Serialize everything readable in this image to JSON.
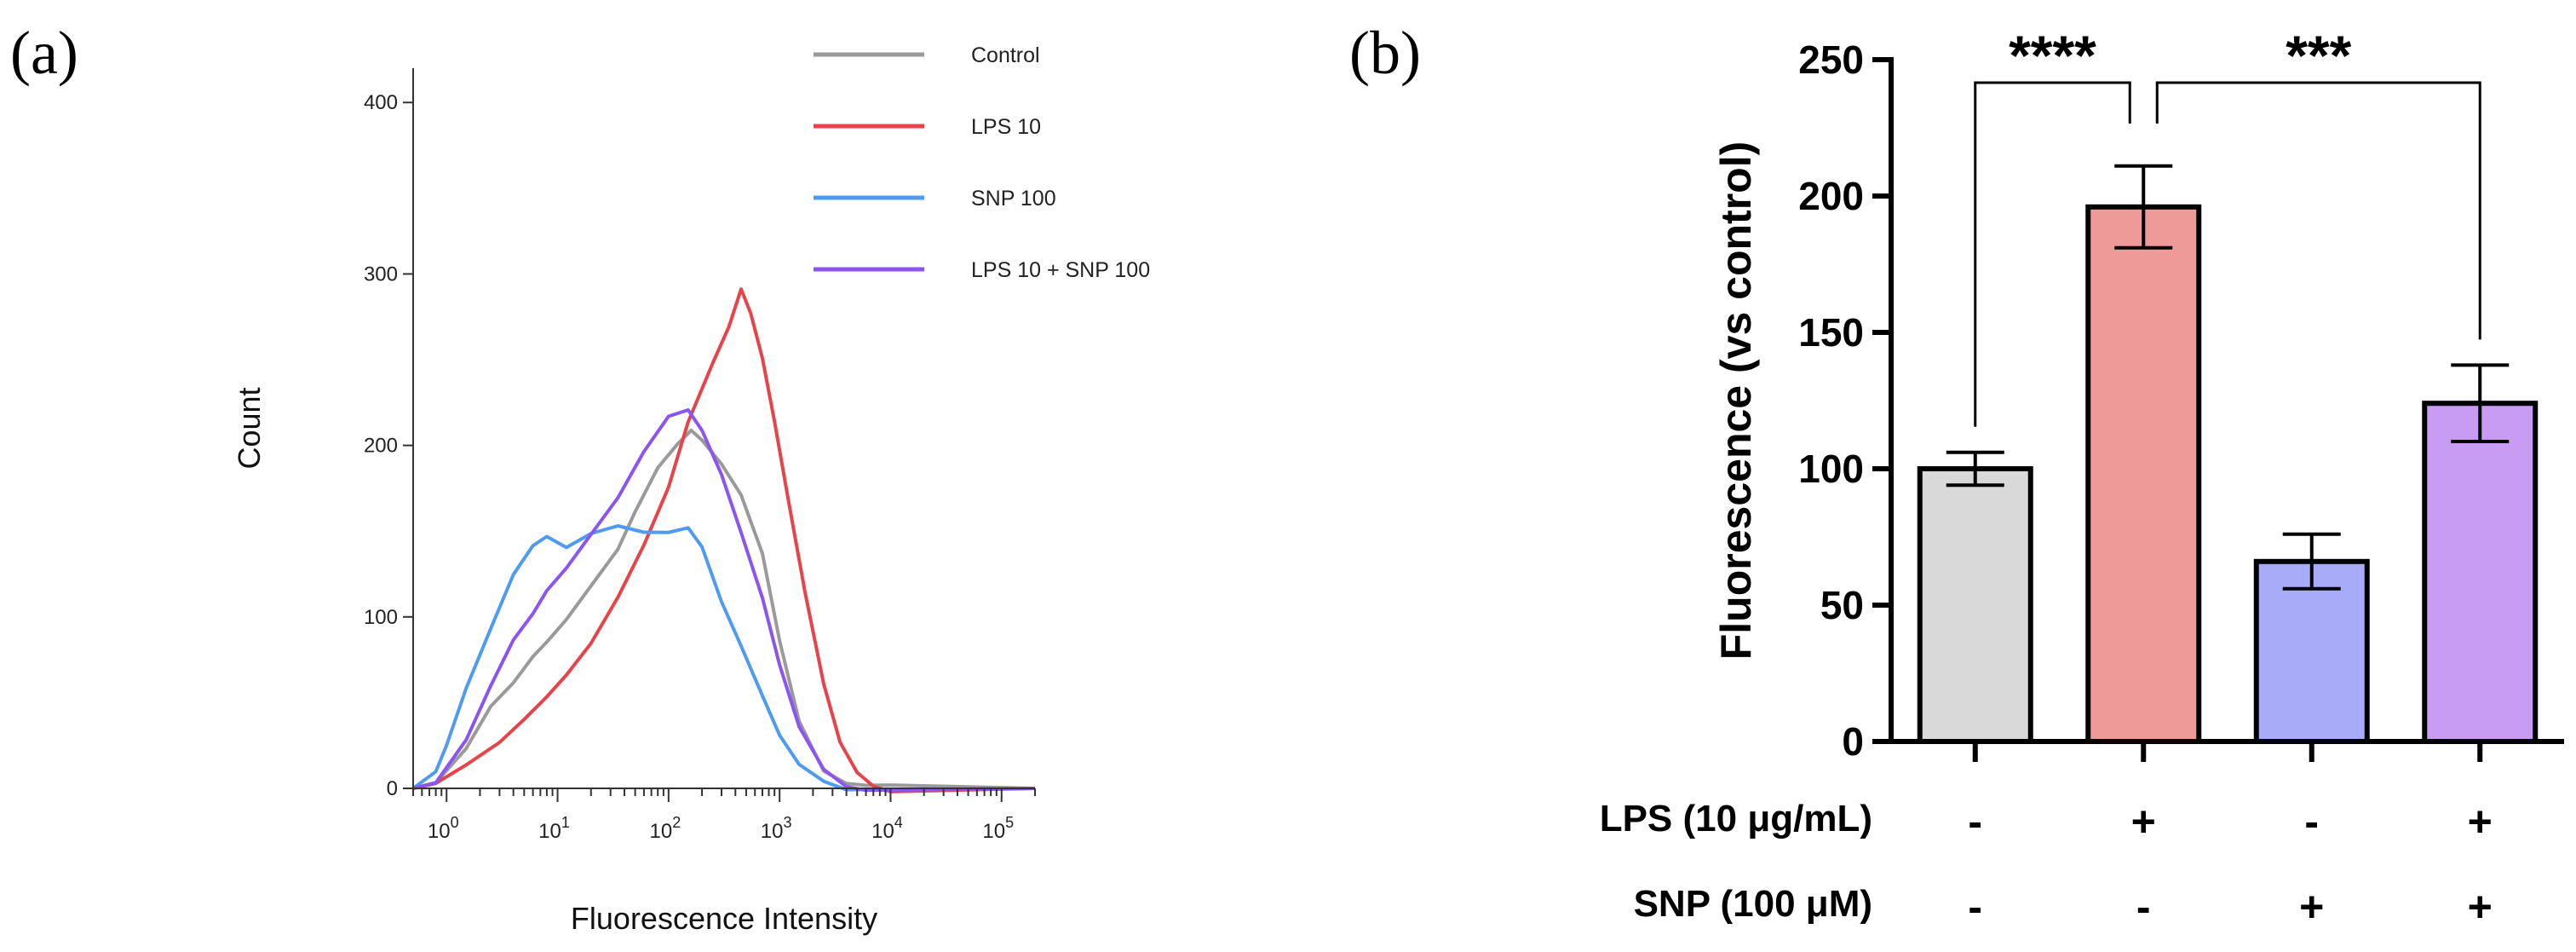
{
  "panel_a_label": "(a)",
  "panel_b_label": "(b)",
  "chart_data": [
    {
      "type": "line",
      "panel": "a",
      "xlabel": "Fluorescence Intensity",
      "ylabel": "Count",
      "x_scale": "log",
      "xlim": [
        0.5,
        200000
      ],
      "ylim": [
        0,
        420
      ],
      "y_ticks": [
        0,
        100,
        200,
        300,
        400
      ],
      "x_tick_labels": [
        {
          "base": "10",
          "exp": "0",
          "value": 1
        },
        {
          "base": "10",
          "exp": "1",
          "value": 10
        },
        {
          "base": "10",
          "exp": "2",
          "value": 100
        },
        {
          "base": "10",
          "exp": "3",
          "value": 1000
        },
        {
          "base": "10",
          "exp": "4",
          "value": 10000
        },
        {
          "base": "10",
          "exp": "5",
          "value": 100000
        }
      ],
      "series": [
        {
          "name": "Control",
          "color": "#9a9a9a",
          "x": [
            0.5,
            0.8,
            1.5,
            2.5,
            4,
            6,
            8,
            12,
            20,
            35,
            50,
            80,
            120,
            160,
            200,
            300,
            450,
            700,
            1000,
            1500,
            2500,
            4000,
            6000,
            10000,
            200000
          ],
          "y": [
            0,
            5,
            25,
            48,
            60,
            75,
            85,
            100,
            120,
            140,
            160,
            185,
            200,
            210,
            205,
            190,
            170,
            135,
            85,
            40,
            12,
            4,
            1,
            0,
            0
          ]
        },
        {
          "name": "LPS 10",
          "color": "#e8434b",
          "x": [
            0.5,
            0.8,
            1.5,
            3,
            5,
            8,
            12,
            20,
            35,
            60,
            100,
            150,
            250,
            350,
            450,
            550,
            700,
            900,
            1200,
            1700,
            2500,
            3500,
            5000,
            7000,
            10000,
            200000
          ],
          "y": [
            0,
            3,
            12,
            25,
            40,
            55,
            68,
            85,
            110,
            140,
            175,
            215,
            250,
            270,
            290,
            275,
            250,
            215,
            170,
            115,
            60,
            25,
            8,
            2,
            0,
            0
          ]
        },
        {
          "name": "SNP 100",
          "color": "#4f9bf2",
          "x": [
            0.5,
            0.8,
            1,
            1.5,
            2.5,
            4,
            6,
            8,
            12,
            20,
            35,
            60,
            100,
            150,
            200,
            300,
            450,
            700,
            1000,
            1500,
            2500,
            4000,
            200000
          ],
          "y": [
            0,
            8,
            25,
            60,
            95,
            125,
            140,
            145,
            140,
            150,
            155,
            150,
            148,
            150,
            140,
            110,
            85,
            55,
            30,
            12,
            3,
            0,
            0
          ]
        },
        {
          "name": "LPS 10 + SNP 100",
          "color": "#8a55f0",
          "x": [
            0.5,
            0.8,
            1.5,
            2.5,
            4,
            6,
            8,
            12,
            20,
            35,
            60,
            100,
            150,
            200,
            300,
            450,
            700,
            1000,
            1500,
            2500,
            4000,
            6000,
            200000
          ],
          "y": [
            0,
            5,
            30,
            60,
            85,
            100,
            115,
            130,
            150,
            170,
            195,
            215,
            220,
            210,
            185,
            150,
            110,
            70,
            35,
            12,
            3,
            0,
            0
          ]
        }
      ]
    },
    {
      "type": "bar",
      "panel": "b",
      "ylabel": "Fluorescence (vs control)",
      "ylim": [
        0,
        250
      ],
      "y_ticks": [
        0,
        50,
        100,
        150,
        200,
        250
      ],
      "bars": [
        {
          "value": 100,
          "error": 6,
          "color": "#d9d9d9",
          "lps": "-",
          "snp": "-"
        },
        {
          "value": 196,
          "error": 15,
          "color": "#ee9a98",
          "lps": "+",
          "snp": "-"
        },
        {
          "value": 66,
          "error": 10,
          "color": "#a8acf8",
          "lps": "-",
          "snp": "+"
        },
        {
          "value": 124,
          "error": 14,
          "color": "#c79cf2",
          "lps": "+",
          "snp": "+"
        }
      ],
      "condition_rows": [
        {
          "label": "LPS (10 μg/mL)",
          "key": "lps"
        },
        {
          "label": "SNP (100 μM)",
          "key": "snp"
        }
      ],
      "significance": [
        {
          "label": "****",
          "from": 0,
          "to": 1
        },
        {
          "label": "***",
          "from": 1,
          "to": 3
        }
      ]
    }
  ]
}
